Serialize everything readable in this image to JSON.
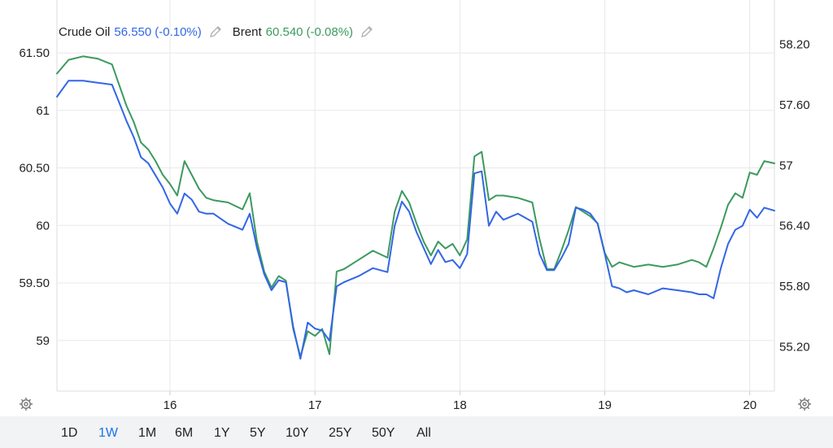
{
  "legend": {
    "series": [
      {
        "name": "Crude Oil",
        "value": "56.550",
        "change": "(-0.10%)",
        "color": "#3366e6"
      },
      {
        "name": "Brent",
        "value": "60.540",
        "change": "(-0.08%)",
        "color": "#3c9a5f"
      }
    ],
    "edit_icon": "pencil-icon"
  },
  "settings_icon": "gear-icon",
  "range_buttons": [
    {
      "label": "1D",
      "active": false
    },
    {
      "label": "1W",
      "active": true
    },
    {
      "label": "1M",
      "active": false
    },
    {
      "label": "6M",
      "active": false
    },
    {
      "label": "1Y",
      "active": false
    },
    {
      "label": "5Y",
      "active": false
    },
    {
      "label": "10Y",
      "active": false
    },
    {
      "label": "25Y",
      "active": false
    },
    {
      "label": "50Y",
      "active": false
    },
    {
      "label": "All",
      "active": false
    }
  ],
  "chart_data": {
    "type": "line",
    "title": "",
    "xlabel": "",
    "ylabel": "",
    "x_ticks": [
      "16",
      "17",
      "18",
      "19",
      "20"
    ],
    "x_tick_values": [
      16,
      17,
      18,
      19,
      20
    ],
    "x_range": [
      15.22,
      20.17
    ],
    "grid": true,
    "legend_position": "top-left",
    "left_axis": {
      "range": [
        58.56,
        61.96
      ],
      "ticks": [
        "61.50",
        "61",
        "60.50",
        "60",
        "59.50",
        "59"
      ],
      "tick_values": [
        61.5,
        61,
        60.5,
        60,
        59.5,
        59
      ]
    },
    "right_axis": {
      "range": [
        54.76,
        58.64
      ],
      "ticks": [
        "58.20",
        "57.60",
        "57",
        "56.40",
        "55.80",
        "55.20"
      ],
      "tick_values": [
        58.2,
        57.6,
        57,
        56.4,
        55.8,
        55.2
      ]
    },
    "series": [
      {
        "name": "Crude Oil",
        "axis": "right",
        "color": "#3366e6",
        "x": [
          15.22,
          15.3,
          15.4,
          15.5,
          15.6,
          15.65,
          15.7,
          15.75,
          15.8,
          15.85,
          15.9,
          15.95,
          16.0,
          16.05,
          16.1,
          16.15,
          16.2,
          16.25,
          16.3,
          16.4,
          16.5,
          16.55,
          16.6,
          16.65,
          16.7,
          16.75,
          16.8,
          16.85,
          16.9,
          16.95,
          17.0,
          17.05,
          17.1,
          17.15,
          17.2,
          17.3,
          17.4,
          17.5,
          17.55,
          17.6,
          17.65,
          17.7,
          17.75,
          17.8,
          17.85,
          17.9,
          17.95,
          18.0,
          18.05,
          18.1,
          18.15,
          18.2,
          18.25,
          18.3,
          18.4,
          18.5,
          18.55,
          18.6,
          18.65,
          18.7,
          18.75,
          18.8,
          18.85,
          18.9,
          18.95,
          19.0,
          19.05,
          19.1,
          19.15,
          19.2,
          19.3,
          19.4,
          19.5,
          19.6,
          19.65,
          19.7,
          19.75,
          19.8,
          19.85,
          19.9,
          19.95,
          20.0,
          20.05,
          20.1,
          20.17
        ],
        "y": [
          57.68,
          57.84,
          57.84,
          57.82,
          57.8,
          57.62,
          57.44,
          57.28,
          57.08,
          57.02,
          56.9,
          56.78,
          56.62,
          56.52,
          56.72,
          56.66,
          56.54,
          56.52,
          56.52,
          56.42,
          56.36,
          56.52,
          56.18,
          55.92,
          55.76,
          55.86,
          55.84,
          55.4,
          55.08,
          55.44,
          55.38,
          55.36,
          55.26,
          55.8,
          55.84,
          55.9,
          55.98,
          55.94,
          56.4,
          56.64,
          56.54,
          56.34,
          56.18,
          56.02,
          56.16,
          56.04,
          56.06,
          55.98,
          56.12,
          56.92,
          56.94,
          56.4,
          56.54,
          56.46,
          56.52,
          56.44,
          56.12,
          55.96,
          55.96,
          56.08,
          56.22,
          56.58,
          56.56,
          56.52,
          56.42,
          56.12,
          55.8,
          55.78,
          55.74,
          55.76,
          55.72,
          55.78,
          55.76,
          55.74,
          55.72,
          55.72,
          55.68,
          55.98,
          56.22,
          56.36,
          56.4,
          56.56,
          56.48,
          56.58,
          56.55
        ]
      },
      {
        "name": "Brent",
        "axis": "left",
        "color": "#3c9a5f",
        "x": [
          15.22,
          15.3,
          15.4,
          15.5,
          15.6,
          15.65,
          15.7,
          15.75,
          15.8,
          15.85,
          15.9,
          15.95,
          16.0,
          16.05,
          16.1,
          16.15,
          16.2,
          16.25,
          16.3,
          16.4,
          16.5,
          16.55,
          16.6,
          16.65,
          16.7,
          16.75,
          16.8,
          16.85,
          16.9,
          16.95,
          17.0,
          17.05,
          17.1,
          17.15,
          17.2,
          17.3,
          17.4,
          17.5,
          17.55,
          17.6,
          17.65,
          17.7,
          17.75,
          17.8,
          17.85,
          17.9,
          17.95,
          18.0,
          18.05,
          18.1,
          18.15,
          18.2,
          18.25,
          18.3,
          18.4,
          18.5,
          18.55,
          18.6,
          18.65,
          18.7,
          18.75,
          18.8,
          18.85,
          18.9,
          18.95,
          19.0,
          19.05,
          19.1,
          19.15,
          19.2,
          19.3,
          19.4,
          19.5,
          19.6,
          19.65,
          19.7,
          19.75,
          19.8,
          19.85,
          19.9,
          19.95,
          20.0,
          20.05,
          20.1,
          20.17
        ],
        "y": [
          61.32,
          61.44,
          61.47,
          61.45,
          61.4,
          61.22,
          61.04,
          60.9,
          60.72,
          60.66,
          60.56,
          60.44,
          60.36,
          60.26,
          60.56,
          60.44,
          60.32,
          60.24,
          60.22,
          60.2,
          60.14,
          60.28,
          59.86,
          59.6,
          59.46,
          59.56,
          59.52,
          59.1,
          58.86,
          59.08,
          59.04,
          59.1,
          58.88,
          59.6,
          59.62,
          59.7,
          59.78,
          59.72,
          60.12,
          60.3,
          60.2,
          60.02,
          59.86,
          59.74,
          59.86,
          59.8,
          59.84,
          59.74,
          59.88,
          60.6,
          60.64,
          60.22,
          60.26,
          60.26,
          60.24,
          60.2,
          59.88,
          59.62,
          59.62,
          59.78,
          59.96,
          60.16,
          60.12,
          60.08,
          60.02,
          59.76,
          59.64,
          59.68,
          59.66,
          59.64,
          59.66,
          59.64,
          59.66,
          59.7,
          59.68,
          59.64,
          59.8,
          59.98,
          60.18,
          60.28,
          60.24,
          60.46,
          60.44,
          60.56,
          60.54
        ]
      }
    ]
  }
}
